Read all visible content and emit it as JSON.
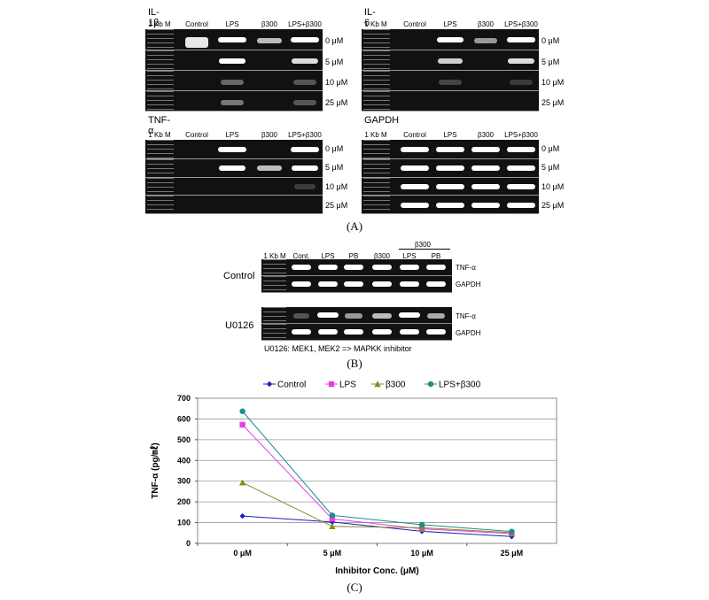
{
  "panel_a": {
    "label": "(A)",
    "ladder_label": "1 Kb M",
    "gels": [
      {
        "title": "IL-1β",
        "lanes": [
          "Control",
          "LPS",
          "β300",
          "LPS+β300"
        ],
        "rows": [
          "0 μM",
          "5 μM",
          "10 μM",
          "25 μM"
        ]
      },
      {
        "title": "IL-6",
        "lanes": [
          "Control",
          "LPS",
          "β300",
          "LPS+β300"
        ],
        "rows": [
          "0 μM",
          "5 μM",
          "10 μM",
          "25 μM"
        ]
      },
      {
        "title": "TNF-α",
        "lanes": [
          "Control",
          "LPS",
          "β300",
          "LPS+β300"
        ],
        "rows": [
          "0 μM",
          "5 μM",
          "10 μM",
          "25 μM"
        ]
      },
      {
        "title": "GAPDH",
        "lanes": [
          "Control",
          "LPS",
          "β300",
          "LPS+β300"
        ],
        "rows": [
          "0 μM",
          "5 μM",
          "10 μM",
          "25 μM"
        ]
      }
    ]
  },
  "panel_b": {
    "label": "(B)",
    "ladder_label": "1 Kb M",
    "lanes": [
      "Cont.",
      "LPS",
      "PB",
      "β300",
      "LPS",
      "PB"
    ],
    "group_label": "β300",
    "blocks": [
      {
        "side_label": "Control",
        "rows": [
          "TNF-α",
          "GAPDH"
        ]
      },
      {
        "side_label": "U0126",
        "rows": [
          "TNF-α",
          "GAPDH"
        ]
      }
    ],
    "note": "U0126: MEK1, MEK2 => MAPKK inhibitor"
  },
  "panel_c": {
    "label": "(C)"
  },
  "chart_data": {
    "type": "line",
    "title": "",
    "xlabel": "Inhibitor Conc. (μM)",
    "ylabel": "TNF-α (pg/㎖)",
    "categories": [
      "0 μM",
      "5 μM",
      "10 μM",
      "25 μM"
    ],
    "ylim": [
      0,
      700
    ],
    "yticks": [
      0,
      100,
      200,
      300,
      400,
      500,
      600,
      700
    ],
    "grid": true,
    "legend_position": "top",
    "series": [
      {
        "name": "Control",
        "values": [
          132,
          103,
          58,
          33
        ],
        "color": "#1f1fbf",
        "marker": "diamond"
      },
      {
        "name": "LPS",
        "values": [
          572,
          118,
          70,
          47
        ],
        "color": "#e83fe8",
        "marker": "square"
      },
      {
        "name": "β300",
        "values": [
          293,
          82,
          75,
          52
        ],
        "color": "#8a8a1e",
        "marker": "triangle"
      },
      {
        "name": "LPS+β300",
        "values": [
          637,
          135,
          90,
          57
        ],
        "color": "#1e8b8b",
        "marker": "circle"
      }
    ]
  }
}
